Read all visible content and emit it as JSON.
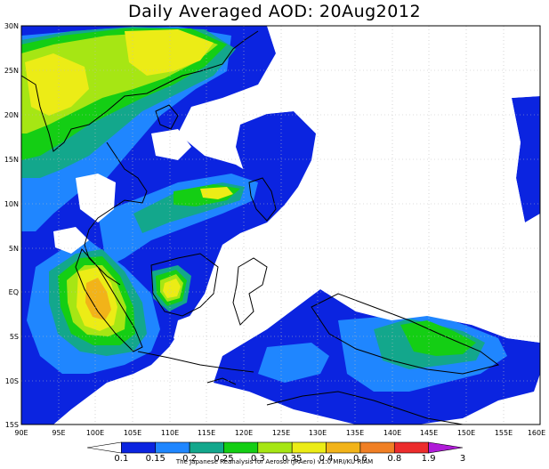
{
  "title": "Daily Averaged AOD: 20Aug2012",
  "lat_labels": [
    "30N",
    "25N",
    "20N",
    "15N",
    "10N",
    "5N",
    "EQ",
    "5S",
    "10S",
    "15S"
  ],
  "lon_labels": [
    "90E",
    "95E",
    "100E",
    "105E",
    "110E",
    "115E",
    "120E",
    "125E",
    "130E",
    "135E",
    "140E",
    "145E",
    "150E",
    "155E",
    "160E"
  ],
  "colorbar": {
    "ticks": [
      "0.1",
      "0.15",
      "0.2",
      "0.25",
      "0.3",
      "0.35",
      "0.4",
      "0.6",
      "0.8",
      "1.9",
      "3"
    ],
    "colors": [
      "#ffffff",
      "#0b24e0",
      "#1f86ff",
      "#13a78c",
      "#14ce14",
      "#a6e614",
      "#ecec16",
      "#f2b319",
      "#f07f24",
      "#ec2c2c",
      "#b01bd8"
    ]
  },
  "credit": "The Japanese Reanalysis for Aerosol (JRAero) v1.0 MRI/KU RIAM"
}
